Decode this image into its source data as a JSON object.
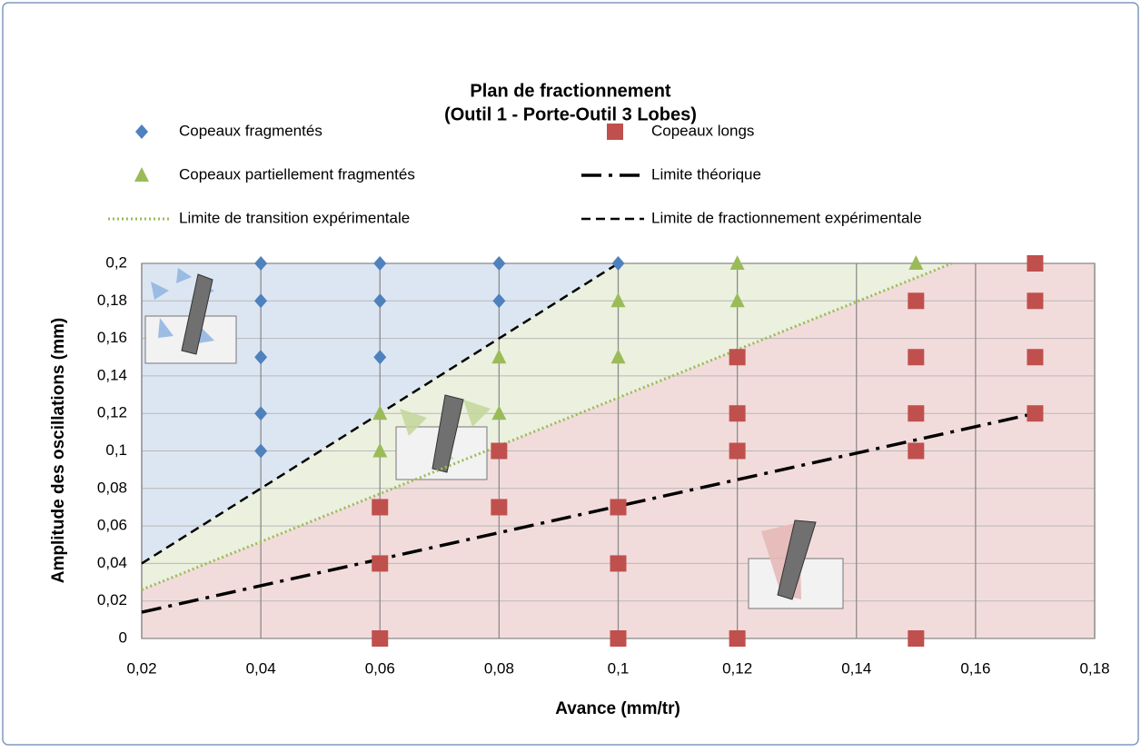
{
  "chart_data": {
    "type": "scatter",
    "title": "Plan de fractionnement",
    "subtitle": "(Outil 1 - Porte-Outil 3 Lobes)",
    "x_label": "Avance (mm/tr)",
    "y_label": "Amplitude des oscillations (mm)",
    "xlim": [
      0.02,
      0.18
    ],
    "xticks": [
      {
        "value": 0.02,
        "label": "0,02"
      },
      {
        "value": 0.04,
        "label": "0,04"
      },
      {
        "value": 0.06,
        "label": "0,06"
      },
      {
        "value": 0.08,
        "label": "0,08"
      },
      {
        "value": 0.1,
        "label": "0,1"
      },
      {
        "value": 0.12,
        "label": "0,12"
      },
      {
        "value": 0.14,
        "label": "0,14"
      },
      {
        "value": 0.16,
        "label": "0,16"
      },
      {
        "value": 0.18,
        "label": "0,18"
      }
    ],
    "ylim": [
      0,
      0.2
    ],
    "yticks": [
      0,
      {
        "value": 0.02,
        "label": "0,02"
      },
      {
        "value": 0.04,
        "label": "0,04"
      },
      {
        "value": 0.06,
        "label": "0,06"
      },
      {
        "value": 0.08,
        "label": "0,08"
      },
      {
        "value": 0.1,
        "label": "0,1"
      },
      {
        "value": 0.12,
        "label": "0,12"
      },
      {
        "value": 0.14,
        "label": "0,14"
      },
      {
        "value": 0.16,
        "label": "0,16"
      },
      {
        "value": 0.18,
        "label": "0,18"
      },
      {
        "value": 0.2,
        "label": "0,2"
      }
    ],
    "grid": true,
    "region_colors": [
      "#dce6f2",
      "#ebf1de",
      "#f2dcdb"
    ],
    "series": [
      {
        "name": "Copeaux fragmentés",
        "kind": "marker",
        "marker": "diamond",
        "color": "#4f81bd",
        "x": [
          0.04,
          0.04,
          0.04,
          0.04,
          0.04,
          0.06,
          0.06,
          0.06,
          0.08,
          0.08,
          0.1
        ],
        "values": [
          0.2,
          0.18,
          0.15,
          0.12,
          0.1,
          0.2,
          0.18,
          0.15,
          0.2,
          0.18,
          0.2
        ]
      },
      {
        "name": "Copeaux longs",
        "kind": "marker",
        "marker": "square",
        "color": "#c0504d",
        "x": [
          0.06,
          0.06,
          0.06,
          0.08,
          0.08,
          0.1,
          0.1,
          0.1,
          0.12,
          0.12,
          0.12,
          0.12,
          0.15,
          0.15,
          0.15,
          0.15,
          0.15,
          0.17,
          0.17,
          0.17,
          0.17
        ],
        "values": [
          0.07,
          0.04,
          0,
          0.1,
          0.07,
          0.07,
          0.04,
          0,
          0.15,
          0.12,
          0.1,
          0,
          0.18,
          0.15,
          0.12,
          0.1,
          0,
          0.2,
          0.18,
          0.15,
          0.12
        ]
      },
      {
        "name": "Copeaux partiellement fragmentés",
        "kind": "marker",
        "marker": "triangle",
        "color": "#9bbb59",
        "x": [
          0.06,
          0.06,
          0.08,
          0.08,
          0.1,
          0.1,
          0.12,
          0.12,
          0.15
        ],
        "values": [
          0.12,
          0.1,
          0.15,
          0.12,
          0.18,
          0.15,
          0.2,
          0.18,
          0.2
        ]
      },
      {
        "name": "Limite théorique",
        "kind": "line",
        "dash": "22,8,4,8",
        "width": 3.5,
        "color": "#000000",
        "x": [
          0.02,
          0.17
        ],
        "values": [
          0.014,
          0.12
        ]
      },
      {
        "name": "Limite de transition expérimentale",
        "kind": "line",
        "dash": "2,3",
        "width": 3,
        "color": "#9bbb59",
        "x": [
          0.02,
          0.156
        ],
        "values": [
          0.026,
          0.2
        ]
      },
      {
        "name": "Limite de fractionnement expérimentale",
        "kind": "line",
        "dash": "10,6",
        "width": 2.5,
        "color": "#000000",
        "x": [
          0.02,
          0.1
        ],
        "values": [
          0.04,
          0.2
        ]
      }
    ]
  }
}
